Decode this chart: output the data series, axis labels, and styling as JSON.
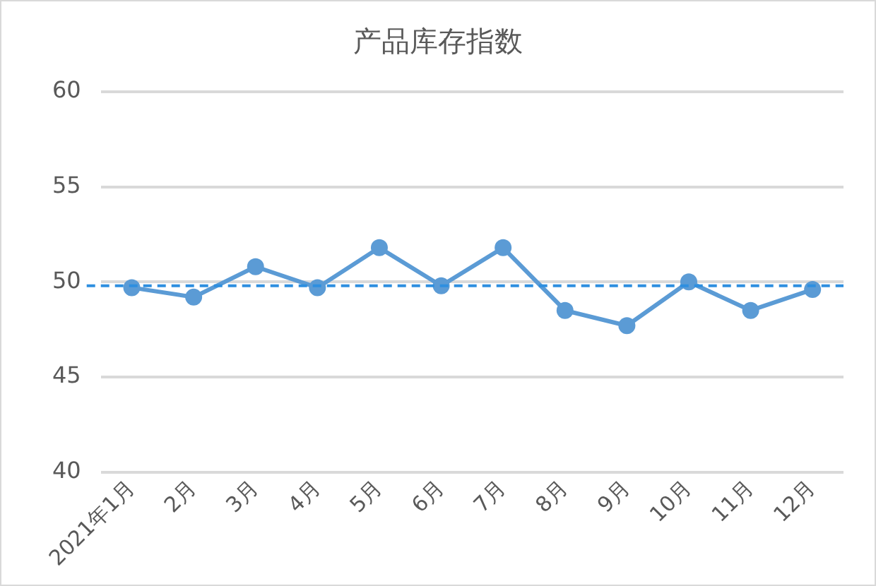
{
  "chart_data": {
    "type": "line",
    "title": "产品库存指数",
    "categories": [
      "2021年1月",
      "2月",
      "3月",
      "4月",
      "5月",
      "6月",
      "7月",
      "8月",
      "9月",
      "10月",
      "11月",
      "12月"
    ],
    "series": [
      {
        "color": "#5b9bd5",
        "values": [
          49.7,
          49.2,
          50.8,
          49.7,
          51.8,
          49.8,
          51.8,
          48.5,
          47.7,
          50.0,
          48.5,
          49.6
        ]
      }
    ],
    "ylim": [
      40,
      60
    ],
    "yticks": [
      40,
      45,
      50,
      55,
      60
    ],
    "grid": "y",
    "legend": false,
    "marker": "circle",
    "line_style": "solid",
    "ref_lines": [
      {
        "axis": "y",
        "value": 49.8,
        "label": null,
        "color": "#2e8fe0",
        "line_style": "dashed"
      }
    ]
  }
}
